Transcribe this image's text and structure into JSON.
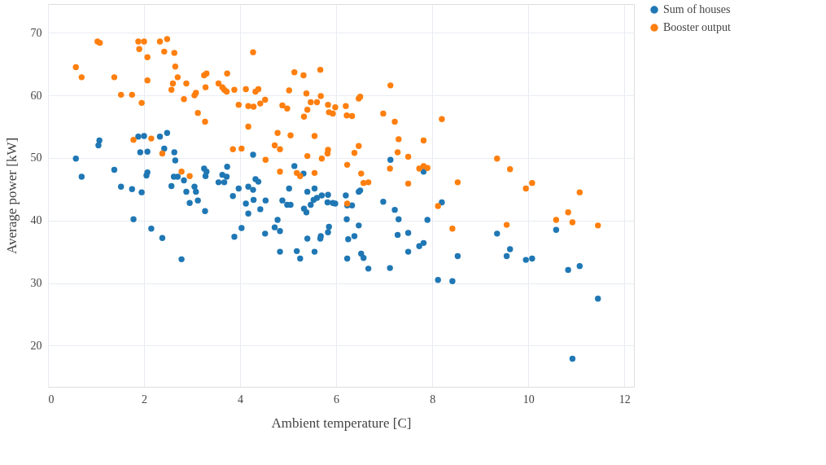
{
  "chart_data": {
    "type": "scatter",
    "xlabel": "Ambient temperature [C]",
    "ylabel": "Average power [kW]",
    "xlim": [
      0,
      12.2
    ],
    "ylim": [
      13.4,
      74.6
    ],
    "xticks": [
      0,
      2,
      4,
      6,
      8,
      10,
      12
    ],
    "yticks": [
      20,
      30,
      40,
      50,
      60,
      70
    ],
    "grid": true,
    "legend": "top right",
    "marker": "circle",
    "series": [
      {
        "name": "Sum of houses",
        "color": "#1f77b4",
        "x": [
          0.58,
          0.7,
          1.05,
          1.07,
          1.38,
          1.52,
          1.75,
          1.78,
          1.88,
          1.92,
          1.95,
          2.0,
          2.07,
          2.07,
          2.05,
          2.15,
          2.33,
          2.42,
          2.38,
          2.48,
          2.57,
          2.63,
          2.65,
          2.62,
          2.7,
          2.78,
          2.83,
          2.88,
          2.95,
          3.05,
          3.08,
          3.12,
          3.25,
          3.28,
          3.27,
          3.3,
          3.55,
          3.63,
          3.67,
          3.72,
          3.73,
          3.85,
          3.88,
          3.97,
          4.03,
          4.12,
          4.17,
          4.17,
          4.27,
          4.27,
          4.28,
          4.32,
          4.38,
          4.42,
          4.52,
          4.53,
          4.72,
          4.78,
          4.83,
          4.83,
          4.88,
          4.98,
          5.02,
          5.05,
          5.13,
          5.18,
          5.25,
          5.32,
          5.33,
          5.38,
          5.4,
          5.4,
          5.47,
          5.53,
          5.55,
          5.55,
          5.6,
          5.67,
          5.68,
          5.7,
          5.82,
          5.83,
          5.85,
          5.83,
          5.93,
          5.98,
          6.2,
          6.22,
          6.23,
          6.23,
          6.25,
          6.33,
          6.38,
          6.47,
          6.47,
          6.5,
          6.52,
          6.57,
          6.67,
          6.98,
          7.12,
          7.13,
          7.22,
          7.28,
          7.3,
          7.5,
          7.5,
          7.73,
          7.82,
          7.82,
          7.9,
          8.12,
          8.2,
          8.42,
          8.53,
          9.35,
          9.55,
          9.62,
          9.95,
          10.08,
          10.58,
          10.83,
          10.92,
          11.07,
          11.45
        ],
        "values": [
          49.9,
          47.0,
          52.0,
          52.8,
          48.1,
          45.4,
          45.0,
          40.2,
          53.4,
          50.9,
          44.5,
          53.5,
          51.0,
          47.7,
          47.2,
          38.7,
          53.4,
          51.5,
          37.2,
          54.0,
          45.5,
          50.9,
          49.6,
          47.0,
          47.0,
          33.8,
          46.4,
          44.6,
          42.8,
          45.4,
          44.6,
          43.2,
          48.3,
          47.1,
          41.5,
          47.8,
          46.1,
          47.3,
          46.1,
          47.0,
          48.6,
          43.9,
          37.4,
          45.1,
          38.8,
          42.7,
          45.4,
          41.1,
          44.9,
          50.5,
          43.3,
          46.6,
          46.2,
          41.8,
          37.9,
          43.2,
          38.9,
          40.1,
          35.0,
          38.3,
          43.2,
          42.5,
          45.1,
          42.5,
          48.7,
          35.1,
          33.9,
          47.5,
          41.9,
          41.3,
          37.1,
          44.6,
          42.5,
          43.3,
          35.0,
          45.1,
          43.6,
          37.1,
          37.5,
          44.0,
          42.9,
          44.1,
          39.0,
          38.1,
          42.8,
          42.7,
          44.0,
          40.2,
          42.4,
          33.9,
          37.0,
          42.4,
          37.5,
          44.6,
          39.2,
          44.8,
          34.7,
          34.0,
          32.3,
          43.0,
          32.4,
          49.7,
          41.7,
          37.7,
          40.2,
          35.0,
          38.0,
          35.9,
          36.4,
          47.8,
          40.1,
          30.5,
          42.9,
          30.3,
          34.3,
          37.9,
          34.3,
          35.4,
          33.7,
          33.9,
          38.5,
          32.1,
          17.9,
          32.7,
          27.5
        ]
      },
      {
        "name": "Booster output",
        "color": "#ff7f0e",
        "x": [
          0.58,
          0.7,
          1.03,
          1.08,
          1.38,
          1.52,
          1.75,
          1.78,
          1.88,
          1.9,
          1.95,
          2.0,
          2.07,
          2.07,
          2.15,
          2.33,
          2.42,
          2.48,
          2.38,
          2.57,
          2.6,
          2.63,
          2.65,
          2.7,
          2.78,
          2.83,
          2.88,
          2.95,
          3.05,
          3.08,
          3.12,
          3.25,
          3.28,
          3.27,
          3.3,
          3.55,
          3.63,
          3.67,
          3.73,
          3.72,
          3.85,
          3.88,
          3.97,
          4.03,
          4.12,
          4.17,
          4.17,
          4.27,
          4.28,
          4.32,
          4.38,
          4.42,
          4.52,
          4.53,
          4.72,
          4.78,
          4.83,
          4.83,
          4.88,
          4.98,
          5.02,
          5.05,
          5.13,
          5.18,
          5.25,
          5.32,
          5.33,
          5.38,
          5.4,
          5.4,
          5.47,
          5.55,
          5.55,
          5.6,
          5.67,
          5.68,
          5.7,
          5.82,
          5.83,
          5.85,
          5.83,
          5.93,
          5.98,
          6.2,
          6.22,
          6.23,
          6.23,
          6.33,
          6.38,
          6.47,
          6.47,
          6.5,
          6.52,
          6.57,
          6.67,
          6.98,
          7.12,
          7.13,
          7.22,
          7.28,
          7.3,
          7.5,
          7.5,
          7.73,
          7.82,
          7.82,
          7.9,
          8.12,
          8.2,
          8.42,
          8.53,
          9.35,
          9.55,
          9.62,
          9.95,
          10.08,
          10.58,
          10.83,
          10.92,
          11.07,
          11.45
        ],
        "values": [
          64.5,
          62.9,
          68.6,
          68.4,
          62.9,
          60.1,
          60.1,
          52.9,
          68.6,
          67.4,
          58.8,
          68.6,
          66.1,
          62.4,
          53.1,
          68.6,
          67.0,
          69.0,
          50.7,
          60.9,
          61.9,
          66.8,
          64.6,
          62.9,
          47.8,
          59.4,
          61.9,
          47.1,
          60.0,
          60.4,
          57.2,
          63.2,
          61.3,
          55.8,
          63.5,
          61.9,
          61.3,
          60.9,
          63.5,
          60.6,
          51.4,
          60.9,
          58.5,
          51.5,
          61.0,
          58.3,
          55.0,
          66.9,
          58.2,
          60.6,
          61.0,
          58.7,
          59.3,
          49.7,
          52.0,
          54.0,
          47.8,
          51.4,
          58.4,
          57.9,
          60.8,
          53.6,
          63.7,
          47.6,
          47.1,
          63.2,
          56.6,
          60.3,
          50.3,
          57.7,
          58.9,
          53.5,
          47.6,
          58.9,
          64.1,
          59.9,
          49.9,
          50.7,
          58.5,
          57.3,
          51.3,
          57.1,
          58.1,
          58.3,
          56.8,
          48.9,
          42.7,
          56.7,
          50.8,
          51.9,
          59.5,
          59.8,
          47.5,
          46.0,
          46.1,
          57.1,
          48.3,
          61.6,
          55.8,
          50.9,
          53.0,
          50.2,
          45.9,
          48.3,
          52.8,
          48.7,
          48.4,
          42.3,
          56.2,
          38.7,
          46.1,
          49.9,
          39.3,
          48.2,
          45.1,
          46.0,
          40.1,
          41.3,
          39.7,
          44.5,
          39.2
        ]
      }
    ]
  }
}
